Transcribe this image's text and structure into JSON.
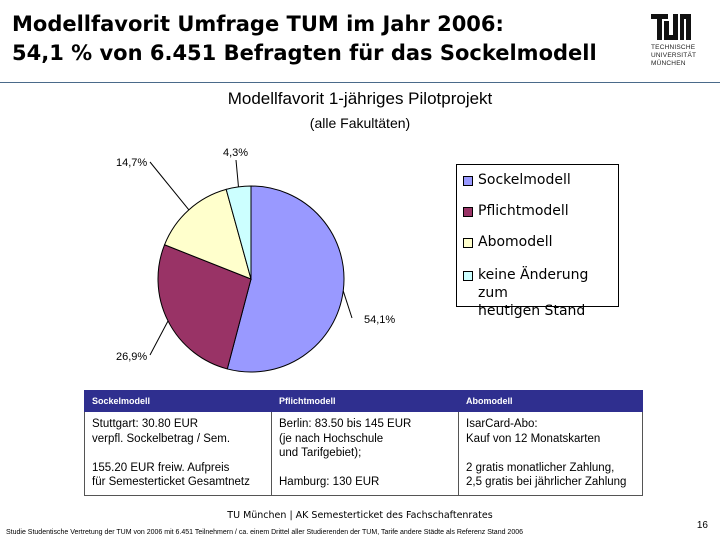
{
  "slide": {
    "title_line1": "Modellfavorit Umfrage TUM im Jahr 2006:",
    "title_line2": "54,1 % von 6.451 Befragten für das Sockelmodell",
    "logo_lines": [
      "TECHNISCHE",
      "UNIVERSITÄT",
      "MÜNCHEN"
    ],
    "footer": "TU München | AK Semesterticket des Fachschaftenrates",
    "page_number": "16",
    "footnote": "Studie Studentische Vertretung der TUM von 2006 mit 6.451 Teilnehmern / ca. einem Drittel aller Studierenden der TUM, Tarife andere Städte als Referenz Stand 2006"
  },
  "chart_data": {
    "type": "pie",
    "title": "Modellfavorit 1-jähriges Pilotprojekt",
    "subtitle": "(alle Fakultäten)",
    "legend_position": "right",
    "slices": [
      {
        "name": "Sockelmodell",
        "value": 54.1,
        "label": "54,1%",
        "color": "#9999ff"
      },
      {
        "name": "Pflichtmodell",
        "value": 26.9,
        "label": "26,9%",
        "color": "#993366"
      },
      {
        "name": "Abomodell",
        "value": 14.7,
        "label": "14,7%",
        "color": "#ffffcc"
      },
      {
        "name": "keine Änderung zum\nheutigen Stand",
        "value": 4.3,
        "label": "4,3%",
        "color": "#ccffff"
      }
    ]
  },
  "table": {
    "headers": [
      "Sockelmodell",
      "Pflichtmodell",
      "Abomodell"
    ],
    "cells": [
      "Stuttgart: 30.80 EUR\nverpfl. Sockelbetrag / Sem.\n\n155.20 EUR freiw. Aufpreis\nfür Semesterticket Gesamtnetz",
      "Berlin: 83.50 bis 145 EUR\n(je nach Hochschule\nund Tarifgebiet);\n\nHamburg: 130 EUR",
      "IsarCard-Abo:\nKauf von 12 Monatskarten\n\n2 gratis monatlicher Zahlung,\n2,5 gratis bei jährlicher Zahlung"
    ]
  }
}
